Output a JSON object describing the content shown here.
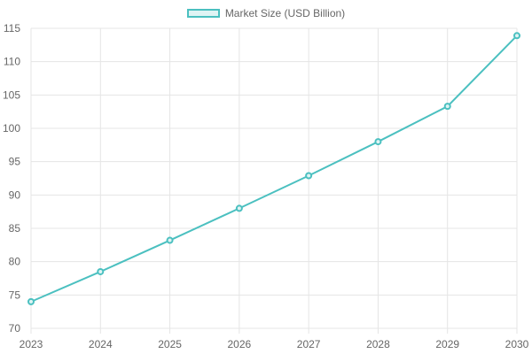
{
  "chart_data": {
    "type": "line",
    "x": [
      "2023",
      "2024",
      "2025",
      "2026",
      "2027",
      "2028",
      "2029",
      "2030"
    ],
    "series": [
      {
        "name": "Market Size (USD Billion)",
        "values": [
          74.0,
          78.5,
          83.2,
          88.0,
          92.9,
          98.0,
          103.3,
          113.9
        ]
      }
    ],
    "ylim": [
      70,
      115
    ],
    "yticks": [
      70,
      75,
      80,
      85,
      90,
      95,
      100,
      105,
      110,
      115
    ],
    "grid": true,
    "legend_position": "top-center",
    "colors": {
      "line": "#4bc0c0",
      "fill": "#dff4f4"
    }
  }
}
